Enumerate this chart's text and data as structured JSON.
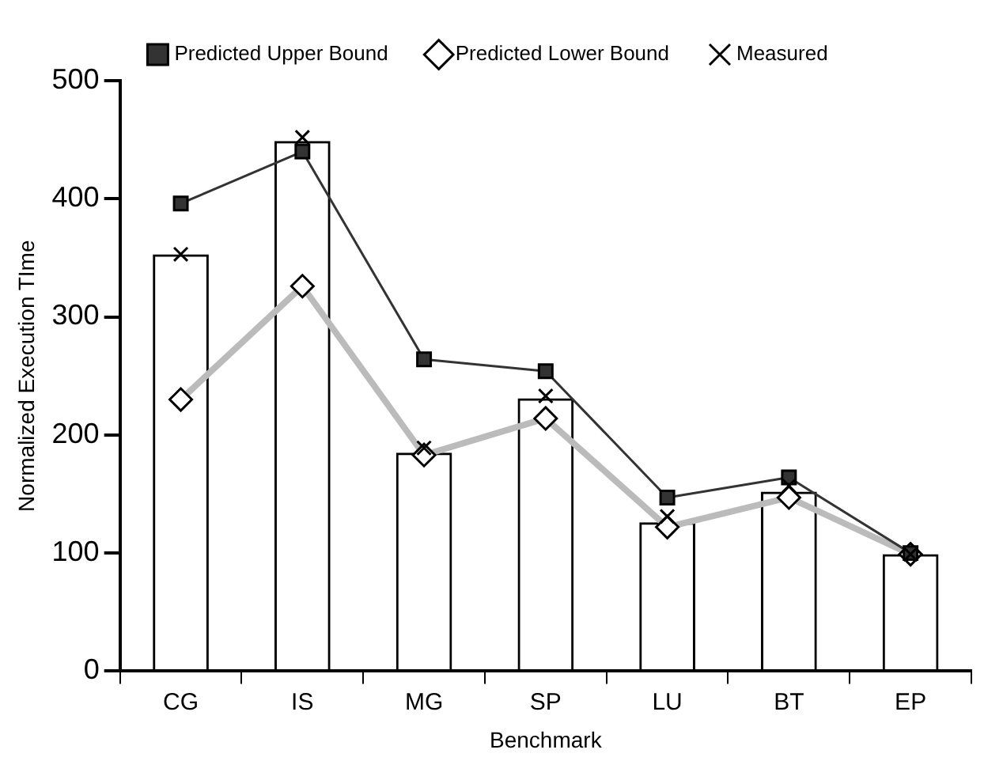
{
  "chart_data": {
    "type": "bar",
    "xlabel": "Benchmark",
    "ylabel": "Normalized Execution TIme",
    "categories": [
      "CG",
      "IS",
      "MG",
      "SP",
      "LU",
      "BT",
      "EP"
    ],
    "ylim": [
      0,
      500
    ],
    "yticks": [
      0,
      100,
      200,
      300,
      400,
      500
    ],
    "grid": false,
    "legend": "top",
    "series": [
      {
        "color": "#000000",
        "values": [
          353,
          449,
          185,
          231,
          126,
          152,
          99
        ]
      },
      {
        "type": "line",
        "name": "Predicted Upper Bound",
        "color": "#333333",
        "marker": "square",
        "values": [
          396,
          440,
          264,
          254,
          147,
          164,
          100
        ]
      },
      {
        "type": "line",
        "name": "Predicted Lower Bound",
        "color": "#bbbbbb",
        "marker": "diamond",
        "values": [
          230,
          326,
          183,
          214,
          122,
          147,
          99
        ]
      },
      {
        "type": "scatter",
        "name": "Measured",
        "color": "#000000",
        "marker": "cross",
        "values": [
          353,
          452,
          189,
          233,
          131,
          157,
          99
        ]
      }
    ]
  }
}
